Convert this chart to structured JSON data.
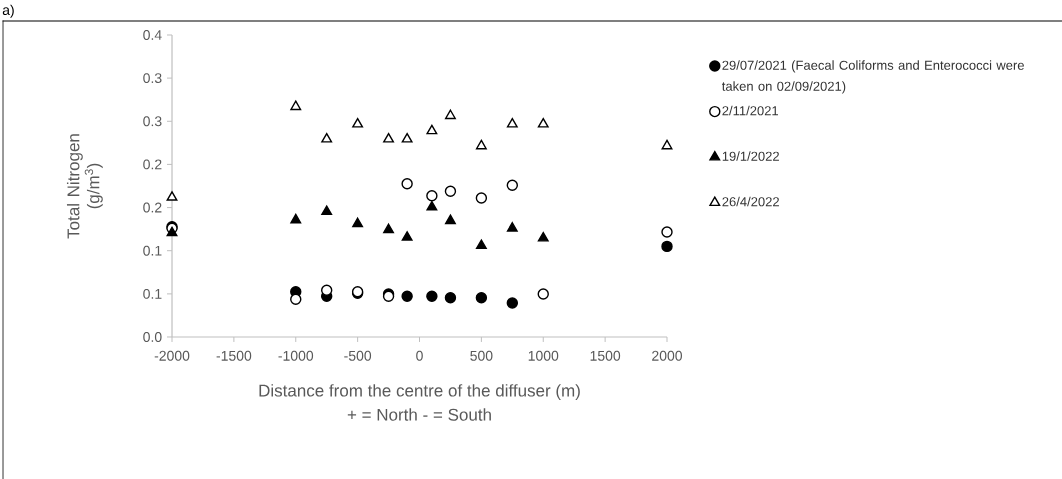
{
  "chart_data": {
    "type": "scatter",
    "xlabel": "Distance from the centre of the diffuser (m)",
    "ylabel": "Total Nitrogen (g/m$^{3}$)",
    "annotations": [
      "+ = North - = South",
      "a)"
    ],
    "x": [
      -2000,
      -1000,
      -750,
      -500,
      -250,
      -100,
      100,
      250,
      500,
      750,
      1000,
      2000
    ],
    "series": [
      {
        "name": "29/07/2021 (Faecal Coliforms and Enterococci were taken on 02/09/2021)",
        "color": "#000000",
        "marker": "circle",
        "values": [
          0.146,
          0.06,
          0.054,
          0.058,
          0.057,
          0.054,
          0.054,
          0.052,
          0.052,
          0.045,
          null,
          0.12
        ]
      },
      {
        "name": "2/11/2021",
        "color": "#ffffff",
        "marker": "circle",
        "values": [
          0.144,
          0.05,
          0.062,
          0.06,
          0.054,
          0.203,
          0.187,
          0.193,
          0.184,
          0.201,
          0.057,
          0.139
        ]
      },
      {
        "name": "19/1/2022",
        "color": "#000000",
        "marker": "triangle",
        "values": [
          0.138,
          0.155,
          0.166,
          0.15,
          0.142,
          0.132,
          0.172,
          0.154,
          0.121,
          0.144,
          0.131,
          null
        ]
      },
      {
        "name": "26/4/2022",
        "color": "#ffffff",
        "marker": "triangle",
        "values": [
          0.185,
          0.305,
          0.262,
          0.282,
          0.262,
          0.262,
          0.273,
          0.293,
          0.253,
          0.282,
          0.282,
          0.253
        ]
      }
    ],
    "xlim": [
      -2000,
      2000
    ],
    "xticks": [
      -2000,
      -1500,
      -1000,
      -500,
      0,
      500,
      1000,
      1500,
      2000
    ],
    "ylim": [
      0,
      0.4
    ],
    "yticks": [
      {
        "value": 0,
        "label": "0.0"
      },
      {
        "value": 0.0571,
        "label": "0.1"
      },
      {
        "value": 0.1143,
        "label": "0.1"
      },
      {
        "value": 0.1714,
        "label": "0.2"
      },
      {
        "value": 0.2286,
        "label": "0.2"
      },
      {
        "value": 0.2857,
        "label": "0.3"
      },
      {
        "value": 0.3429,
        "label": "0.3"
      },
      {
        "value": 0.4,
        "label": "0.4"
      }
    ],
    "grid": false,
    "legend": "right"
  }
}
